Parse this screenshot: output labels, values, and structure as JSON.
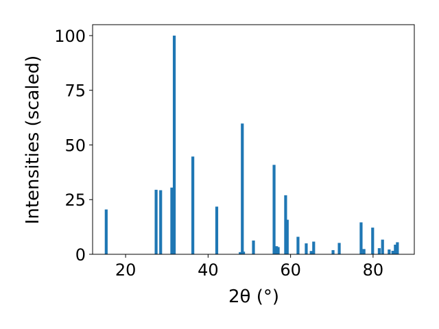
{
  "chart_data": {
    "type": "bar",
    "title": "",
    "xlabel": "2θ (°)",
    "ylabel": "Intensities (scaled)",
    "xlim": [
      12,
      90
    ],
    "ylim": [
      0,
      105
    ],
    "x_ticks": [
      "20",
      "40",
      "60",
      "80"
    ],
    "x_tick_values": [
      20,
      40,
      60,
      80
    ],
    "y_ticks": [
      "0",
      "25",
      "50",
      "75",
      "100"
    ],
    "y_tick_values": [
      0,
      25,
      50,
      75,
      100
    ],
    "grid": false,
    "bar_color": "#1f77b4",
    "bar_width": 0.7,
    "series": [
      {
        "x": [
          15.3,
          27.4,
          28.5,
          31.2,
          31.8,
          36.3,
          42.1,
          47.8,
          48.3,
          48.6,
          51.0,
          56.0,
          56.6,
          57.0,
          58.8,
          59.2,
          61.8,
          63.8,
          65.0,
          65.6,
          70.3,
          71.8,
          77.1,
          77.8,
          79.9,
          81.5,
          82.3,
          83.9,
          84.8,
          85.4,
          85.9
        ],
        "y": [
          20.5,
          29.5,
          29.3,
          30.5,
          100.0,
          44.7,
          21.8,
          1.0,
          59.8,
          1.2,
          6.3,
          40.9,
          3.7,
          3.3,
          27.0,
          15.8,
          8.0,
          5.0,
          1.5,
          5.8,
          1.9,
          5.2,
          14.6,
          2.4,
          12.2,
          2.8,
          6.7,
          2.2,
          1.6,
          4.4,
          5.5
        ]
      }
    ]
  }
}
